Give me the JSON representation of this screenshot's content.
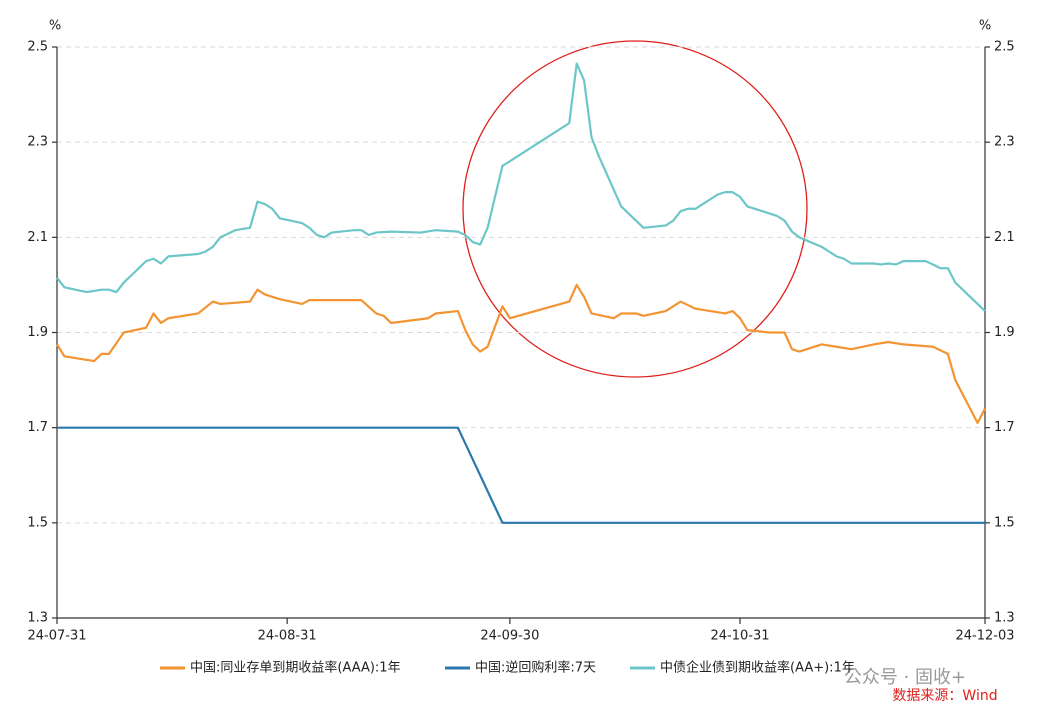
{
  "chart_data": {
    "type": "line",
    "y_unit": "%",
    "y2_unit": "%",
    "xlim": [
      "24-07-31",
      "24-12-03"
    ],
    "xticks": [
      "24-07-31",
      "24-08-31",
      "24-09-30",
      "24-10-31",
      "24-12-03"
    ],
    "ylim": [
      1.3,
      2.5
    ],
    "yticks": [
      1.3,
      1.5,
      1.7,
      1.9,
      2.1,
      2.3,
      2.5
    ],
    "y2lim": [
      1.3,
      2.5
    ],
    "y2ticks": [
      1.3,
      1.5,
      1.7,
      1.9,
      2.1,
      2.3,
      2.5
    ],
    "grid": true,
    "series": [
      {
        "name": "中国:同业存单到期收益率(AAA):1年",
        "color": "#f39433",
        "x": [
          "24-07-31",
          "24-08-01",
          "24-08-05",
          "24-08-06",
          "24-08-07",
          "24-08-09",
          "24-08-12",
          "24-08-13",
          "24-08-14",
          "24-08-15",
          "24-08-19",
          "24-08-21",
          "24-08-22",
          "24-08-26",
          "24-08-27",
          "24-08-28",
          "24-08-30",
          "24-09-02",
          "24-09-03",
          "24-09-10",
          "24-09-12",
          "24-09-13",
          "24-09-14",
          "24-09-19",
          "24-09-20",
          "24-09-23",
          "24-09-24",
          "24-09-25",
          "24-09-26",
          "24-09-27",
          "24-09-29",
          "24-09-30",
          "24-10-08",
          "24-10-09",
          "24-10-10",
          "24-10-11",
          "24-10-14",
          "24-10-15",
          "24-10-17",
          "24-10-18",
          "24-10-21",
          "24-10-23",
          "24-10-25",
          "24-10-29",
          "24-10-30",
          "24-10-31",
          "24-11-01",
          "24-11-04",
          "24-11-05",
          "24-11-06",
          "24-11-07",
          "24-11-08",
          "24-11-11",
          "24-11-13",
          "24-11-15",
          "24-11-18",
          "24-11-20",
          "24-11-22",
          "24-11-26",
          "24-11-28",
          "24-11-29",
          "24-12-02",
          "24-12-03"
        ],
        "values": [
          1.875,
          1.85,
          1.84,
          1.855,
          1.855,
          1.9,
          1.91,
          1.94,
          1.92,
          1.93,
          1.94,
          1.965,
          1.96,
          1.965,
          1.99,
          1.98,
          1.97,
          1.96,
          1.968,
          1.968,
          1.94,
          1.935,
          1.92,
          1.93,
          1.94,
          1.945,
          1.905,
          1.875,
          1.86,
          1.87,
          1.955,
          1.93,
          1.965,
          2.0,
          1.975,
          1.94,
          1.93,
          1.94,
          1.94,
          1.935,
          1.945,
          1.965,
          1.95,
          1.94,
          1.945,
          1.93,
          1.905,
          1.9,
          1.9,
          1.9,
          1.865,
          1.86,
          1.875,
          1.87,
          1.865,
          1.875,
          1.88,
          1.875,
          1.87,
          1.855,
          1.8,
          1.71,
          1.74
        ]
      },
      {
        "name": "中国:逆回购利率:7天",
        "color": "#2b78ae",
        "x": [
          "24-07-31",
          "24-09-23",
          "24-09-29",
          "24-12-03"
        ],
        "values": [
          1.7,
          1.7,
          1.5,
          1.5
        ]
      },
      {
        "name": "中债企业债到期收益率(AA+):1年",
        "color": "#6cc6c9",
        "x": [
          "24-07-31",
          "24-08-01",
          "24-08-04",
          "24-08-06",
          "24-08-07",
          "24-08-08",
          "24-08-09",
          "24-08-12",
          "24-08-13",
          "24-08-14",
          "24-08-15",
          "24-08-19",
          "24-08-20",
          "24-08-21",
          "24-08-22",
          "24-08-24",
          "24-08-26",
          "24-08-27",
          "24-08-28",
          "24-08-29",
          "24-08-30",
          "24-09-02",
          "24-09-03",
          "24-09-04",
          "24-09-05",
          "24-09-06",
          "24-09-09",
          "24-09-10",
          "24-09-11",
          "24-09-12",
          "24-09-14",
          "24-09-18",
          "24-09-20",
          "24-09-23",
          "24-09-24",
          "24-09-25",
          "24-09-26",
          "24-09-27",
          "24-09-29",
          "24-10-08",
          "24-10-09",
          "24-10-10",
          "24-10-11",
          "24-10-12",
          "24-10-15",
          "24-10-18",
          "24-10-21",
          "24-10-22",
          "24-10-23",
          "24-10-24",
          "24-10-25",
          "24-10-28",
          "24-10-29",
          "24-10-30",
          "24-10-31",
          "24-11-01",
          "24-11-04",
          "24-11-05",
          "24-11-06",
          "24-11-07",
          "24-11-08",
          "24-11-11",
          "24-11-13",
          "24-11-14",
          "24-11-15",
          "24-11-18",
          "24-11-19",
          "24-11-20",
          "24-11-21",
          "24-11-22",
          "24-11-25",
          "24-11-26",
          "24-11-27",
          "24-11-28",
          "24-11-29",
          "24-12-02",
          "24-12-03"
        ],
        "values": [
          2.015,
          1.995,
          1.985,
          1.99,
          1.99,
          1.985,
          2.005,
          2.05,
          2.055,
          2.045,
          2.06,
          2.065,
          2.07,
          2.08,
          2.1,
          2.115,
          2.12,
          2.175,
          2.17,
          2.16,
          2.14,
          2.13,
          2.12,
          2.105,
          2.1,
          2.11,
          2.115,
          2.115,
          2.105,
          2.11,
          2.112,
          2.11,
          2.115,
          2.112,
          2.105,
          2.09,
          2.085,
          2.12,
          2.25,
          2.34,
          2.465,
          2.43,
          2.31,
          2.27,
          2.165,
          2.12,
          2.125,
          2.135,
          2.155,
          2.16,
          2.16,
          2.19,
          2.195,
          2.195,
          2.185,
          2.165,
          2.15,
          2.145,
          2.135,
          2.112,
          2.1,
          2.08,
          2.06,
          2.055,
          2.045,
          2.045,
          2.043,
          2.045,
          2.043,
          2.05,
          2.05,
          2.043,
          2.035,
          2.035,
          2.005,
          1.96,
          1.945
        ]
      }
    ],
    "watermark": "公众号 · 固收+",
    "source": "数据来源：Wind"
  }
}
